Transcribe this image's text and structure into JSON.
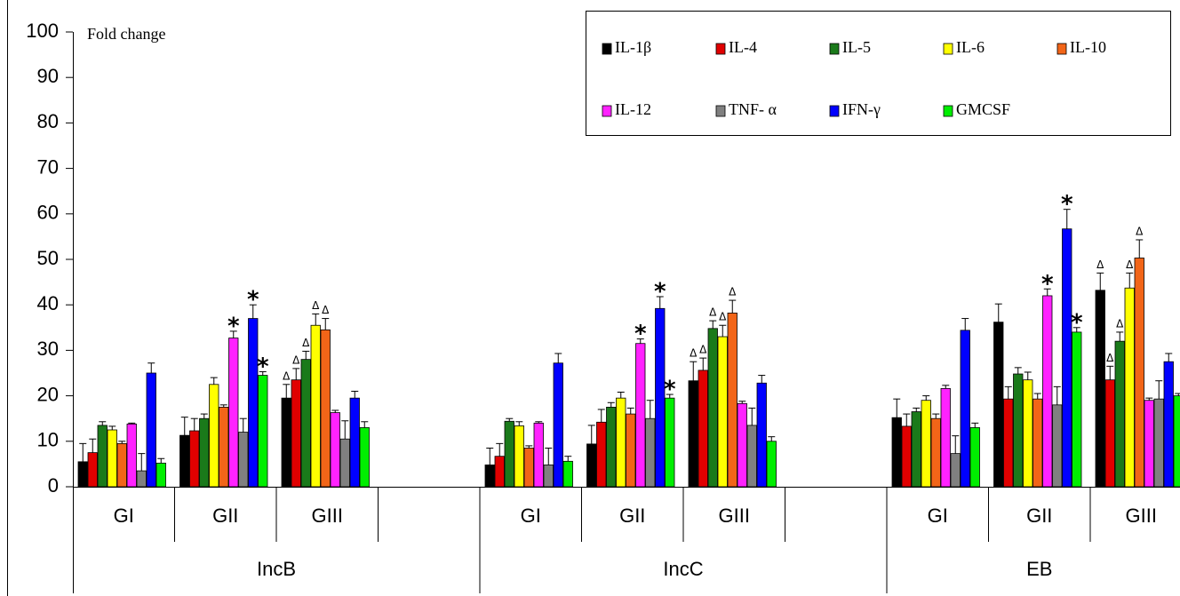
{
  "chart_data": {
    "type": "bar",
    "ylabel": "Fold change",
    "categories": [
      "GI",
      "GII",
      "GIII",
      null,
      "GI",
      "GII",
      "GIII",
      null,
      "GI",
      "GII",
      "GIII"
    ],
    "category_groups": [
      "IncB",
      "IncC",
      "EB"
    ],
    "ylim": [
      0,
      100
    ],
    "yticks": [
      0,
      10,
      20,
      30,
      40,
      50,
      60,
      70,
      80,
      90,
      100
    ],
    "legend": "upper right",
    "series": [
      {
        "name": "IL-1β",
        "color": "#000000",
        "values": [
          5.5,
          11.3,
          19.5,
          null,
          4.8,
          9.4,
          23.3,
          null,
          15.2,
          36.2,
          43.2
        ],
        "errors": [
          4,
          4,
          3,
          null,
          3.7,
          4.1,
          4.2,
          null,
          4.1,
          4,
          3.8
        ],
        "markers": [
          null,
          null,
          "Δ",
          null,
          null,
          null,
          "Δ",
          null,
          null,
          null,
          "Δ"
        ]
      },
      {
        "name": "IL-4",
        "color": "#e00000",
        "values": [
          7.5,
          12.3,
          23.5,
          null,
          6.7,
          14.2,
          25.6,
          null,
          13.3,
          19.3,
          23.5
        ],
        "errors": [
          3,
          2.7,
          2.5,
          null,
          2.8,
          2.8,
          2.7,
          null,
          2.7,
          2.7,
          3
        ],
        "markers": [
          null,
          null,
          "Δ",
          null,
          null,
          null,
          "Δ",
          null,
          null,
          null,
          "Δ"
        ]
      },
      {
        "name": "IL-5",
        "color": "#1a7a1a",
        "values": [
          13.5,
          15,
          28,
          null,
          14.4,
          17.5,
          34.8,
          null,
          16.5,
          24.8,
          32
        ],
        "errors": [
          0.8,
          1,
          1.8,
          null,
          0.6,
          1,
          1.7,
          null,
          0.8,
          1.4,
          2
        ],
        "markers": [
          null,
          null,
          "Δ",
          null,
          null,
          null,
          "Δ",
          null,
          null,
          null,
          "Δ"
        ]
      },
      {
        "name": "IL-6",
        "color": "#ffff00",
        "values": [
          12.5,
          22.5,
          35.5,
          null,
          13.4,
          19.5,
          33,
          null,
          19,
          23.5,
          43.7
        ],
        "errors": [
          0.8,
          1.5,
          2.5,
          null,
          0.9,
          1.3,
          2.5,
          null,
          1,
          1.7,
          3.3
        ],
        "markers": [
          null,
          null,
          "Δ",
          null,
          null,
          null,
          "Δ",
          null,
          null,
          null,
          "Δ"
        ]
      },
      {
        "name": "IL-10",
        "color": "#f26518",
        "values": [
          9.5,
          17.5,
          34.5,
          null,
          8.5,
          16,
          38.2,
          null,
          15,
          19.3,
          50.3
        ],
        "errors": [
          0.5,
          0.5,
          2.5,
          null,
          0.5,
          1.3,
          2.8,
          null,
          1,
          1.2,
          4
        ],
        "markers": [
          null,
          null,
          "Δ",
          null,
          null,
          null,
          "Δ",
          null,
          null,
          null,
          "Δ"
        ]
      },
      {
        "name": "IL-12",
        "color": "#ff22ff",
        "values": [
          13.8,
          32.7,
          16.3,
          null,
          14,
          31.5,
          18.3,
          null,
          21.6,
          42,
          19
        ],
        "errors": [
          0.2,
          1.5,
          0.5,
          null,
          0.3,
          1,
          0.5,
          null,
          0.7,
          1.5,
          0.5
        ],
        "markers": [
          null,
          "*",
          null,
          null,
          null,
          "*",
          null,
          null,
          null,
          "*",
          null
        ]
      },
      {
        "name": "TNF- α",
        "color": "#808080",
        "values": [
          3.5,
          12,
          10.5,
          null,
          4.8,
          15,
          13.5,
          null,
          7.3,
          18,
          19.3
        ],
        "errors": [
          3.8,
          3,
          4,
          null,
          3.7,
          4,
          3.8,
          null,
          3.9,
          4,
          4
        ]
      },
      {
        "name": "IFN-γ",
        "color": "#0000ff",
        "values": [
          25,
          37,
          19.5,
          null,
          27.2,
          39.2,
          22.8,
          null,
          34.4,
          56.7,
          27.5
        ],
        "errors": [
          2.2,
          3,
          1.5,
          null,
          2.1,
          2.6,
          1.7,
          null,
          2.6,
          4.3,
          1.8
        ],
        "markers": [
          null,
          "*",
          null,
          null,
          null,
          "*",
          null,
          null,
          null,
          "*",
          null
        ]
      },
      {
        "name": "GMCSF",
        "color": "#00ee00",
        "values": [
          5.2,
          24.5,
          13,
          null,
          5.6,
          19.5,
          10,
          null,
          13,
          34,
          20
        ],
        "errors": [
          1,
          0.8,
          1.3,
          null,
          1.1,
          0.8,
          1,
          null,
          1,
          1,
          0.5
        ],
        "markers": [
          null,
          "*",
          null,
          null,
          null,
          "*",
          null,
          null,
          null,
          "*",
          null
        ]
      }
    ]
  }
}
